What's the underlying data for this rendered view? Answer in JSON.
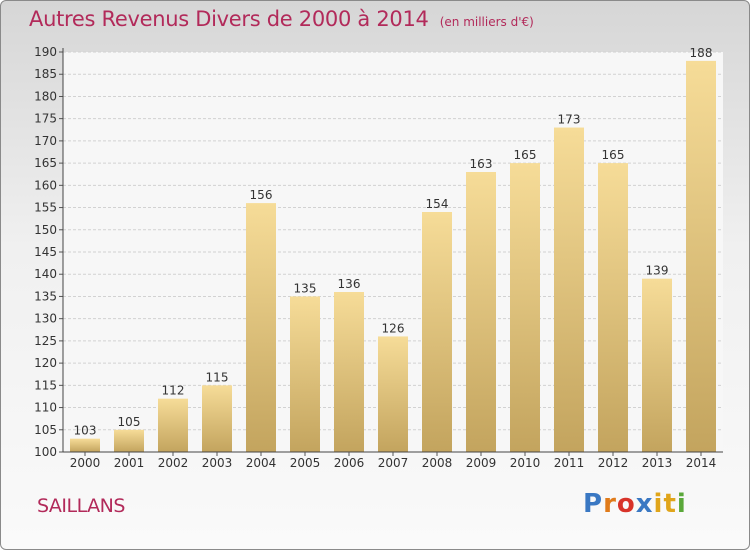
{
  "header": {
    "title": "Autres Revenus Divers de 2000 à 2014",
    "subtitle": "(en milliers d'€)"
  },
  "footer": {
    "commune": "SAILLANS",
    "logo": {
      "text": "Proxiti",
      "colors": [
        "#3a78c3",
        "#e07b1a",
        "#d8332a",
        "#3a78c3",
        "#e0a51a",
        "#e0a51a",
        "#5aa83a"
      ]
    }
  },
  "chart_data": {
    "type": "bar",
    "title": "Autres Revenus Divers de 2000 à 2014",
    "subtitle": "(en milliers d'€)",
    "xlabel": "",
    "ylabel": "",
    "categories": [
      "2000",
      "2001",
      "2002",
      "2003",
      "2004",
      "2005",
      "2006",
      "2007",
      "2008",
      "2009",
      "2010",
      "2011",
      "2012",
      "2013",
      "2014"
    ],
    "values": [
      103,
      105,
      112,
      115,
      156,
      135,
      136,
      126,
      154,
      163,
      165,
      173,
      165,
      139,
      188
    ],
    "ylim": [
      100,
      190
    ],
    "yticks": [
      100,
      105,
      110,
      115,
      120,
      125,
      130,
      135,
      140,
      145,
      150,
      155,
      160,
      165,
      170,
      175,
      180,
      185,
      190
    ],
    "grid": true,
    "bar_color": "#e3c77a"
  }
}
